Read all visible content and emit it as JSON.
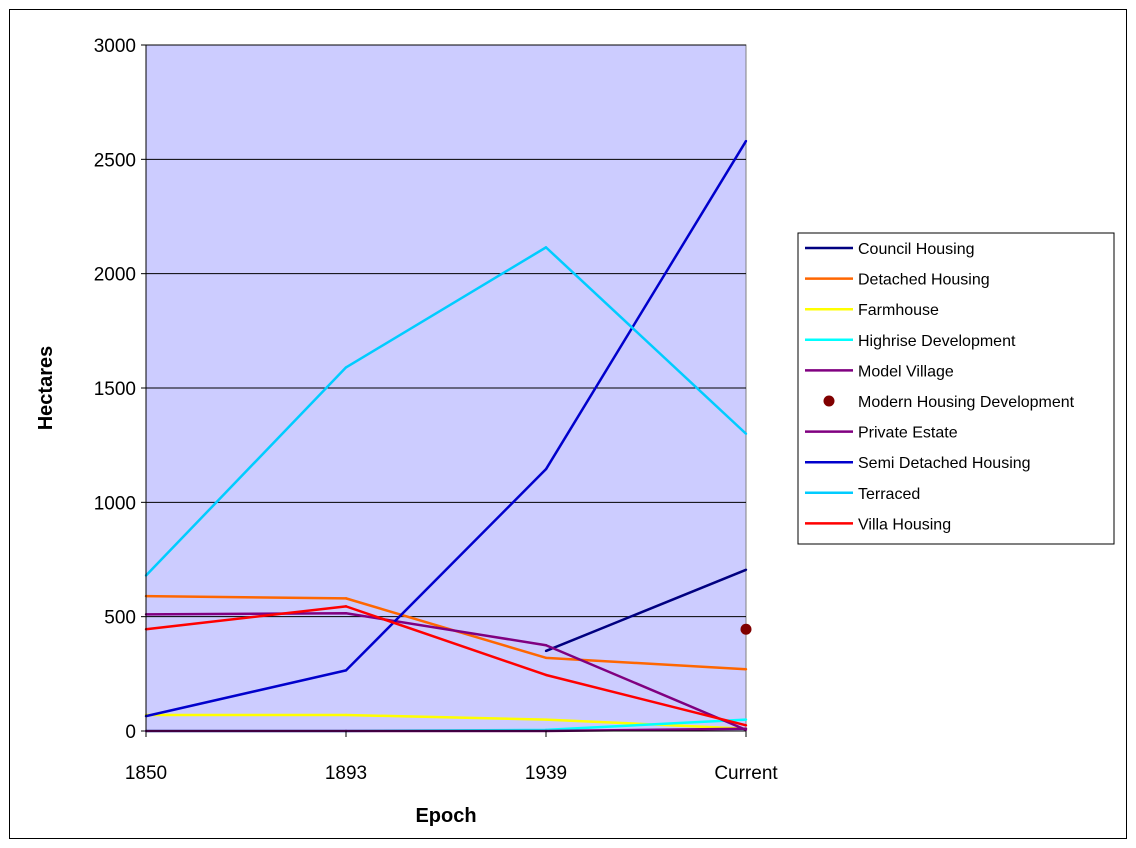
{
  "chart_data": {
    "type": "line",
    "title": "",
    "xlabel": "Epoch",
    "ylabel": "Hectares",
    "categories": [
      "1850",
      "1893",
      "1939",
      "Current"
    ],
    "ylim": [
      0,
      3000
    ],
    "yticks": [
      0,
      500,
      1000,
      1500,
      2000,
      2500,
      3000
    ],
    "grid": true,
    "plot_background": "#ccccff",
    "legend_position": "right",
    "series": [
      {
        "name": "Council Housing",
        "color": "#000080",
        "kind": "line",
        "values": [
          null,
          null,
          350,
          705
        ]
      },
      {
        "name": "Detached Housing",
        "color": "#ff6600",
        "kind": "line",
        "values": [
          590,
          580,
          320,
          270
        ]
      },
      {
        "name": "Farmhouse",
        "color": "#ffff00",
        "kind": "line",
        "values": [
          70,
          70,
          50,
          10
        ]
      },
      {
        "name": "Highrise Development",
        "color": "#00ffff",
        "kind": "line",
        "values": [
          0,
          0,
          5,
          50
        ]
      },
      {
        "name": "Model Village",
        "color": "#800080",
        "kind": "line",
        "values": [
          0,
          0,
          0,
          10
        ]
      },
      {
        "name": "Modern Housing Development",
        "color": "#800000",
        "kind": "marker",
        "values": [
          null,
          null,
          null,
          445
        ]
      },
      {
        "name": "Private Estate",
        "color": "#800080",
        "kind": "line",
        "values": [
          510,
          515,
          375,
          5
        ]
      },
      {
        "name": "Semi Detached Housing",
        "color": "#0000cc",
        "kind": "line",
        "values": [
          65,
          265,
          1145,
          2580
        ]
      },
      {
        "name": "Terraced",
        "color": "#00ccff",
        "kind": "line",
        "values": [
          680,
          1590,
          2115,
          1300
        ]
      },
      {
        "name": "Villa Housing",
        "color": "#ff0000",
        "kind": "line",
        "values": [
          445,
          545,
          245,
          25
        ]
      }
    ]
  }
}
